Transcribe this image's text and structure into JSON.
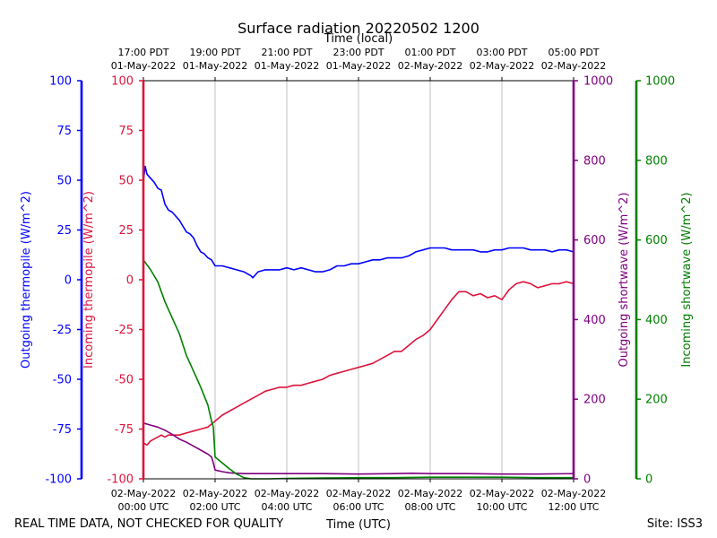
{
  "chart_data": {
    "type": "line",
    "title": "Surface radiation 20220502 1200",
    "x_top_label": "Time (local)",
    "x_bottom_label": "Time (UTC)",
    "footer_left": "REAL TIME DATA, NOT CHECKED FOR QUALITY",
    "footer_right": "Site: ISS3",
    "x_range_hours": [
      0,
      12
    ],
    "x_ticks_bottom": [
      {
        "h": 0,
        "line1": "02-May-2022",
        "line2": "00:00 UTC"
      },
      {
        "h": 2,
        "line1": "02-May-2022",
        "line2": "02:00 UTC"
      },
      {
        "h": 4,
        "line1": "02-May-2022",
        "line2": "04:00 UTC"
      },
      {
        "h": 6,
        "line1": "02-May-2022",
        "line2": "06:00 UTC"
      },
      {
        "h": 8,
        "line1": "02-May-2022",
        "line2": "08:00 UTC"
      },
      {
        "h": 10,
        "line1": "02-May-2022",
        "line2": "10:00 UTC"
      },
      {
        "h": 12,
        "line1": "02-May-2022",
        "line2": "12:00 UTC"
      }
    ],
    "x_ticks_top": [
      {
        "h": 0,
        "line1": "17:00 PDT",
        "line2": "01-May-2022"
      },
      {
        "h": 2,
        "line1": "19:00 PDT",
        "line2": "01-May-2022"
      },
      {
        "h": 4,
        "line1": "21:00 PDT",
        "line2": "01-May-2022"
      },
      {
        "h": 6,
        "line1": "23:00 PDT",
        "line2": "01-May-2022"
      },
      {
        "h": 8,
        "line1": "01:00 PDT",
        "line2": "02-May-2022"
      },
      {
        "h": 10,
        "line1": "03:00 PDT",
        "line2": "02-May-2022"
      },
      {
        "h": 12,
        "line1": "05:00 PDT",
        "line2": "02-May-2022"
      }
    ],
    "axes": [
      {
        "id": "out_thermo",
        "label": "Outgoing thermopile (W/m^2)",
        "color": "#0000ff",
        "range": [
          -100,
          100
        ],
        "ticks": [
          -100,
          -75,
          -50,
          -25,
          0,
          25,
          50,
          75,
          100
        ]
      },
      {
        "id": "in_thermo",
        "label": "Incoming thermopile (W/m^2)",
        "color": "#dc143c",
        "range": [
          -100,
          100
        ],
        "ticks": [
          -100,
          -75,
          -50,
          -25,
          0,
          25,
          50,
          75,
          100
        ]
      },
      {
        "id": "out_sw",
        "label": "Outgoing shortwave (W/m^2)",
        "color": "#800080",
        "range": [
          0,
          1000
        ],
        "ticks": [
          0,
          200,
          400,
          600,
          800,
          1000
        ]
      },
      {
        "id": "in_sw",
        "label": "Incoming shortwave (W/m^2)",
        "color": "#008000",
        "range": [
          0,
          1000
        ],
        "ticks": [
          0,
          200,
          400,
          600,
          800,
          1000
        ]
      }
    ],
    "series": [
      {
        "name": "Outgoing thermopile",
        "axis": "out_thermo",
        "color": "#0000ff",
        "x": [
          0,
          0.05,
          0.1,
          0.2,
          0.3,
          0.4,
          0.5,
          0.6,
          0.7,
          0.8,
          0.9,
          1.0,
          1.1,
          1.2,
          1.3,
          1.4,
          1.5,
          1.6,
          1.7,
          1.8,
          1.9,
          2.0,
          2.2,
          2.4,
          2.6,
          2.8,
          3.0,
          3.05,
          3.2,
          3.4,
          3.6,
          3.8,
          4.0,
          4.2,
          4.4,
          4.6,
          4.8,
          5.0,
          5.2,
          5.4,
          5.6,
          5.8,
          6.0,
          6.2,
          6.4,
          6.6,
          6.8,
          7.0,
          7.2,
          7.4,
          7.6,
          7.8,
          8.0,
          8.2,
          8.4,
          8.6,
          8.8,
          9.0,
          9.2,
          9.4,
          9.6,
          9.8,
          10.0,
          10.2,
          10.4,
          10.6,
          10.8,
          11.0,
          11.2,
          11.4,
          11.6,
          11.8,
          12.0
        ],
        "y": [
          50,
          57,
          53,
          51,
          49,
          46,
          45,
          38,
          35,
          34,
          32,
          30,
          27,
          24,
          23,
          21,
          17,
          14,
          13,
          11,
          10,
          7,
          7,
          6,
          5,
          4,
          2,
          1,
          4,
          5,
          5,
          5,
          6,
          5,
          6,
          5,
          4,
          4,
          5,
          7,
          7,
          8,
          8,
          9,
          10,
          10,
          11,
          11,
          11,
          12,
          14,
          15,
          16,
          16,
          16,
          15,
          15,
          15,
          15,
          14,
          14,
          15,
          15,
          16,
          16,
          16,
          15,
          15,
          15,
          14,
          15,
          15,
          14
        ]
      },
      {
        "name": "Incoming thermopile",
        "axis": "in_thermo",
        "color": "#dc143c",
        "x": [
          0,
          0.1,
          0.2,
          0.3,
          0.4,
          0.5,
          0.6,
          0.7,
          0.8,
          0.9,
          1.0,
          1.2,
          1.4,
          1.6,
          1.8,
          2.0,
          2.2,
          2.4,
          2.6,
          2.8,
          3.0,
          3.2,
          3.4,
          3.6,
          3.8,
          4.0,
          4.2,
          4.4,
          4.6,
          4.8,
          5.0,
          5.2,
          5.4,
          5.6,
          5.8,
          6.0,
          6.2,
          6.4,
          6.6,
          6.8,
          7.0,
          7.2,
          7.4,
          7.6,
          7.8,
          8.0,
          8.2,
          8.4,
          8.6,
          8.8,
          9.0,
          9.2,
          9.4,
          9.6,
          9.8,
          10.0,
          10.2,
          10.4,
          10.6,
          10.8,
          11.0,
          11.2,
          11.4,
          11.6,
          11.8,
          12.0
        ],
        "y": [
          -82,
          -83,
          -81,
          -80,
          -79,
          -78,
          -79,
          -78,
          -78,
          -78,
          -78,
          -77,
          -76,
          -75,
          -74,
          -71,
          -68,
          -66,
          -64,
          -62,
          -60,
          -58,
          -56,
          -55,
          -54,
          -54,
          -53,
          -53,
          -52,
          -51,
          -50,
          -48,
          -47,
          -46,
          -45,
          -44,
          -43,
          -42,
          -40,
          -38,
          -36,
          -36,
          -33,
          -30,
          -28,
          -25,
          -20,
          -15,
          -10,
          -6,
          -6,
          -8,
          -7,
          -9,
          -8,
          -10,
          -5,
          -2,
          -1,
          -2,
          -4,
          -3,
          -2,
          -2,
          -1,
          -2
        ]
      },
      {
        "name": "Outgoing shortwave",
        "axis": "out_sw",
        "color": "#800080",
        "x": [
          0,
          0.2,
          0.4,
          0.6,
          0.8,
          1.0,
          1.2,
          1.4,
          1.6,
          1.8,
          1.9,
          1.95,
          2.0,
          2.2,
          2.4,
          2.6,
          2.8,
          3.0,
          3.5,
          4.0,
          5.0,
          6.0,
          7.0,
          7.5,
          8.0,
          9.0,
          10.0,
          11.0,
          12.0
        ],
        "y": [
          140,
          135,
          130,
          122,
          112,
          100,
          92,
          82,
          72,
          62,
          55,
          40,
          22,
          18,
          15,
          14,
          13,
          13,
          13,
          13,
          13,
          12,
          13,
          14,
          13,
          13,
          12,
          12,
          13
        ]
      },
      {
        "name": "Incoming shortwave",
        "axis": "in_sw",
        "color": "#008000",
        "x": [
          0,
          0.2,
          0.4,
          0.6,
          0.8,
          1.0,
          1.2,
          1.4,
          1.6,
          1.8,
          1.9,
          1.95,
          2.0,
          2.2,
          2.4,
          2.6,
          2.8,
          3.0,
          3.5,
          4.0,
          5.0,
          6.0,
          7.0,
          8.0,
          9.0,
          10.0,
          11.0,
          12.0
        ],
        "y": [
          550,
          525,
          495,
          445,
          405,
          365,
          310,
          270,
          230,
          185,
          145,
          130,
          55,
          40,
          25,
          12,
          3,
          0,
          0,
          1,
          2,
          3,
          3,
          4,
          4,
          4,
          3,
          3
        ]
      }
    ],
    "gridlines": "vertical at x ticks"
  }
}
